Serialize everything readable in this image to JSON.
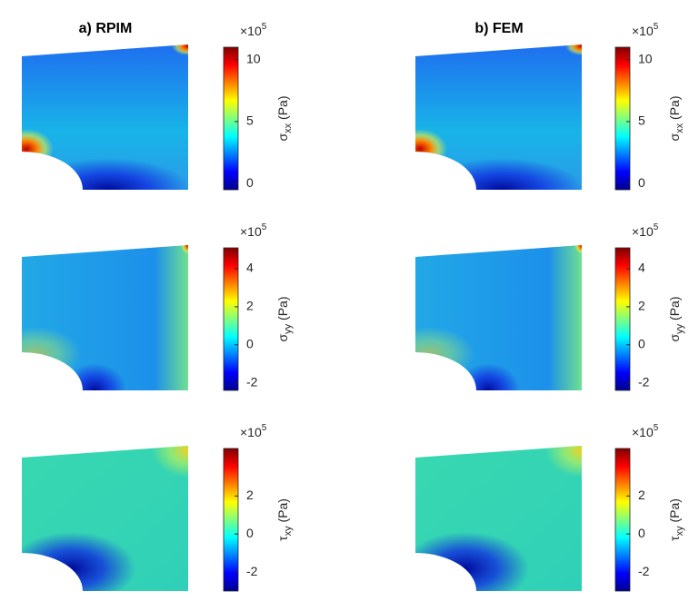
{
  "chart_data": [
    {
      "type": "contour",
      "title": "a) RPIM",
      "field": "sxx",
      "colorbar_label": {
        "symbol": "σ",
        "subscript": "xx",
        "unit": "(Pa)"
      },
      "multiplier": {
        "base": "×10",
        "exponent": "5"
      },
      "ylim": [
        -0.5,
        11
      ],
      "yticks": [
        0,
        5,
        10
      ]
    },
    {
      "type": "contour",
      "title": "b) FEM",
      "field": "sxx",
      "colorbar_label": {
        "symbol": "σ",
        "subscript": "xx",
        "unit": "(Pa)"
      },
      "multiplier": {
        "base": "×10",
        "exponent": "5"
      },
      "ylim": [
        -0.5,
        11
      ],
      "yticks": [
        0,
        5,
        10
      ]
    },
    {
      "type": "contour",
      "field": "syy",
      "colorbar_label": {
        "symbol": "σ",
        "subscript": "yy",
        "unit": "(Pa)"
      },
      "multiplier": {
        "base": "×10",
        "exponent": "5"
      },
      "ylim": [
        -2.4,
        5.1
      ],
      "yticks": [
        -2,
        0,
        2,
        4
      ]
    },
    {
      "type": "contour",
      "field": "syy",
      "colorbar_label": {
        "symbol": "σ",
        "subscript": "yy",
        "unit": "(Pa)"
      },
      "multiplier": {
        "base": "×10",
        "exponent": "5"
      },
      "ylim": [
        -2.4,
        5.1
      ],
      "yticks": [
        -2,
        0,
        2,
        4
      ]
    },
    {
      "type": "contour",
      "field": "txy",
      "colorbar_label": {
        "symbol": "τ",
        "subscript": "xy",
        "unit": "(Pa)"
      },
      "multiplier": {
        "base": "×10",
        "exponent": "5"
      },
      "ylim": [
        -3,
        4.5
      ],
      "yticks": [
        -2,
        0,
        2
      ]
    },
    {
      "type": "contour",
      "field": "txy",
      "colorbar_label": {
        "symbol": "τ",
        "subscript": "xy",
        "unit": "(Pa)"
      },
      "multiplier": {
        "base": "×10",
        "exponent": "5"
      },
      "ylim": [
        -3,
        4.5
      ],
      "yticks": [
        -2,
        0,
        2
      ]
    }
  ]
}
